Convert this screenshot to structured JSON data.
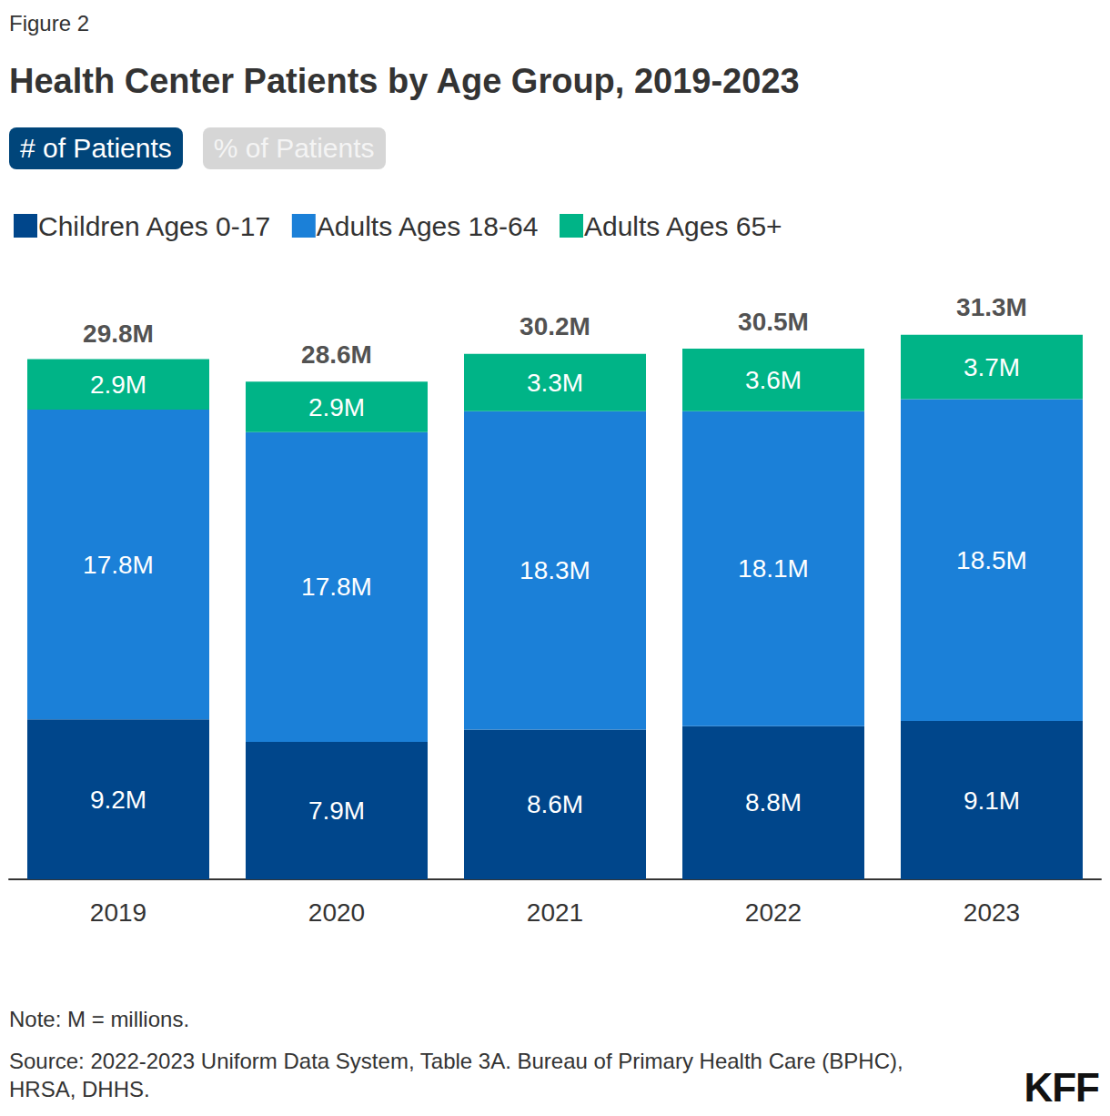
{
  "chart_data": {
    "type": "bar",
    "figure_label": "Figure 2",
    "title": "Health Center Patients by Age Group, 2019-2023",
    "buttons": [
      "# of Patients",
      "% of Patients"
    ],
    "categories": [
      "2019",
      "2020",
      "2021",
      "2022",
      "2023"
    ],
    "series": [
      {
        "name": "Children Ages 0-17",
        "color": "#00468b",
        "values": [
          9.2,
          7.9,
          8.6,
          8.8,
          9.1
        ],
        "value_labels": [
          "9.2M",
          "7.9M",
          "8.6M",
          "8.8M",
          "9.1M"
        ]
      },
      {
        "name": "Adults Ages 18-64",
        "color": "#1b80d8",
        "values": [
          17.8,
          17.8,
          18.3,
          18.1,
          18.5
        ],
        "value_labels": [
          "17.8M",
          "17.8M",
          "18.3M",
          "18.1M",
          "18.5M"
        ]
      },
      {
        "name": "Adults Ages 65+",
        "color": "#00b487",
        "values": [
          2.9,
          2.9,
          3.3,
          3.6,
          3.7
        ],
        "value_labels": [
          "2.9M",
          "2.9M",
          "3.3M",
          "3.6M",
          "3.7M"
        ]
      }
    ],
    "totals": [
      29.8,
      28.6,
      30.2,
      30.5,
      31.3
    ],
    "total_labels": [
      "29.8M",
      "28.6M",
      "30.2M",
      "30.5M",
      "31.3M"
    ],
    "stacked": true,
    "data_labels": true,
    "tick_labels": "x",
    "grid": false,
    "ylim": [
      0,
      35
    ],
    "note": "Note: M = millions.",
    "source": "Source: 2022-2023 Uniform Data System, Table 3A. Bureau of Primary Health Care (BPHC), HRSA, DHHS.",
    "logo": "KFF"
  }
}
